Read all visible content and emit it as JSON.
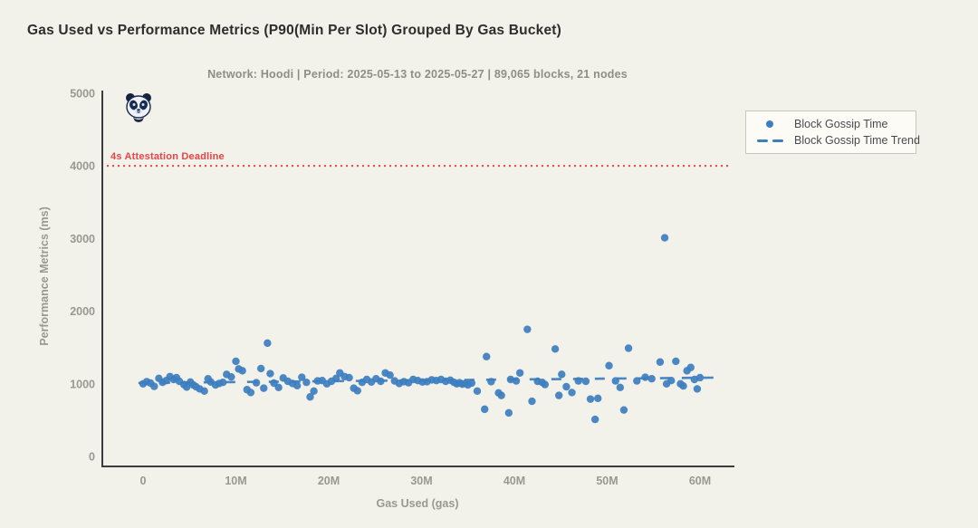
{
  "header": {
    "title": "Gas Used vs Performance Metrics (P90(Min Per Slot) Grouped By Gas Bucket)",
    "subtitle": "Network: Hoodi | Period: 2025-05-13 to 2025-05-27 | 89,065 blocks, 21 nodes"
  },
  "legend": {
    "items": [
      {
        "label": "Block Gossip Time",
        "marker": "dot"
      },
      {
        "label": "Block Gossip Time Trend",
        "marker": "dash"
      }
    ]
  },
  "colors": {
    "background": "#f2f1ea",
    "point_blue": "#3c7ebf",
    "trend_blue": "#4a86c2",
    "deadline_red": "#e84545",
    "axis": "#3c3c3a",
    "tick_text": "#9a988f",
    "title_text": "#2d2d2b",
    "subtitle_text": "#8f8e86"
  },
  "icons": {
    "logo": "panda-logo"
  },
  "chart_data": {
    "type": "scatter",
    "title": "Gas Used vs Performance Metrics (P90(Min Per Slot) Grouped By Gas Bucket)",
    "xlabel": "Gas Used (gas)",
    "ylabel": "Performance Metrics (ms)",
    "x_unit_note": "x values are gas used in millions (M)",
    "grid": false,
    "legend_position": "top-right",
    "ylim": [
      0,
      5000
    ],
    "x_ticks": [
      {
        "value": 0,
        "label": "0"
      },
      {
        "value": 10,
        "label": "10M"
      },
      {
        "value": 20,
        "label": "20M"
      },
      {
        "value": 30,
        "label": "30M"
      },
      {
        "value": 40,
        "label": "40M"
      },
      {
        "value": 50,
        "label": "50M"
      },
      {
        "value": 60,
        "label": "60M"
      }
    ],
    "y_ticks": [
      {
        "value": 0,
        "label": "0"
      },
      {
        "value": 1000,
        "label": "1000"
      },
      {
        "value": 2000,
        "label": "2000"
      },
      {
        "value": 3000,
        "label": "3000"
      },
      {
        "value": 4000,
        "label": "4000"
      },
      {
        "value": 5000,
        "label": "5000"
      }
    ],
    "deadline": {
      "value": 4000,
      "label": "4s Attestation Deadline"
    },
    "series": [
      {
        "name": "Block Gossip Time",
        "kind": "scatter",
        "points": [
          [
            0.0,
            1000
          ],
          [
            0.4,
            1030
          ],
          [
            0.8,
            1010
          ],
          [
            1.2,
            965
          ],
          [
            1.7,
            1075
          ],
          [
            2.1,
            1020
          ],
          [
            2.5,
            1045
          ],
          [
            2.9,
            1100
          ],
          [
            3.3,
            1060
          ],
          [
            3.6,
            1085
          ],
          [
            3.9,
            1035
          ],
          [
            4.4,
            990
          ],
          [
            4.7,
            955
          ],
          [
            5.1,
            1025
          ],
          [
            5.4,
            985
          ],
          [
            5.7,
            960
          ],
          [
            6.1,
            930
          ],
          [
            6.6,
            900
          ],
          [
            7.0,
            1070
          ],
          [
            7.3,
            1025
          ],
          [
            7.8,
            985
          ],
          [
            8.2,
            1005
          ],
          [
            8.6,
            1020
          ],
          [
            9.0,
            1130
          ],
          [
            9.5,
            1095
          ],
          [
            10.0,
            1310
          ],
          [
            10.3,
            1205
          ],
          [
            10.7,
            1180
          ],
          [
            11.2,
            920
          ],
          [
            11.6,
            880
          ],
          [
            12.2,
            1015
          ],
          [
            12.7,
            1210
          ],
          [
            13.0,
            940
          ],
          [
            13.4,
            1560
          ],
          [
            13.7,
            1140
          ],
          [
            14.1,
            1010
          ],
          [
            14.6,
            950
          ],
          [
            15.1,
            1080
          ],
          [
            15.6,
            1035
          ],
          [
            16.1,
            1005
          ],
          [
            16.6,
            975
          ],
          [
            17.1,
            1090
          ],
          [
            17.6,
            1020
          ],
          [
            18.0,
            820
          ],
          [
            18.4,
            900
          ],
          [
            18.8,
            1040
          ],
          [
            19.3,
            1045
          ],
          [
            19.8,
            1000
          ],
          [
            20.3,
            1035
          ],
          [
            20.8,
            1075
          ],
          [
            21.2,
            1150
          ],
          [
            21.7,
            1100
          ],
          [
            22.2,
            1085
          ],
          [
            22.7,
            940
          ],
          [
            23.1,
            905
          ],
          [
            23.6,
            1020
          ],
          [
            24.1,
            1060
          ],
          [
            24.6,
            1025
          ],
          [
            25.1,
            1070
          ],
          [
            25.6,
            1035
          ],
          [
            26.1,
            1150
          ],
          [
            26.6,
            1120
          ],
          [
            27.1,
            1040
          ],
          [
            27.6,
            1005
          ],
          [
            28.1,
            1030
          ],
          [
            28.6,
            1015
          ],
          [
            29.1,
            1060
          ],
          [
            29.6,
            1045
          ],
          [
            30.1,
            1025
          ],
          [
            30.6,
            1030
          ],
          [
            31.1,
            1055
          ],
          [
            31.6,
            1045
          ],
          [
            32.1,
            1060
          ],
          [
            32.6,
            1035
          ],
          [
            33.1,
            1050
          ],
          [
            33.5,
            1020
          ],
          [
            33.8,
            1000
          ],
          [
            34.1,
            1015
          ],
          [
            34.4,
            995
          ],
          [
            34.7,
            1005
          ],
          [
            35.0,
            985
          ],
          [
            35.4,
            1010
          ],
          [
            36.0,
            900
          ],
          [
            36.8,
            650
          ],
          [
            37.0,
            1375
          ],
          [
            37.5,
            1030
          ],
          [
            38.3,
            875
          ],
          [
            38.6,
            840
          ],
          [
            39.4,
            600
          ],
          [
            39.6,
            1060
          ],
          [
            40.2,
            1040
          ],
          [
            40.6,
            1150
          ],
          [
            41.4,
            1750
          ],
          [
            41.9,
            760
          ],
          [
            42.5,
            1035
          ],
          [
            43.0,
            1020
          ],
          [
            43.3,
            990
          ],
          [
            44.4,
            1480
          ],
          [
            44.8,
            840
          ],
          [
            45.1,
            1130
          ],
          [
            45.6,
            960
          ],
          [
            46.2,
            880
          ],
          [
            46.9,
            1040
          ],
          [
            47.7,
            1035
          ],
          [
            48.2,
            790
          ],
          [
            48.7,
            510
          ],
          [
            49.0,
            800
          ],
          [
            50.2,
            1250
          ],
          [
            50.9,
            1040
          ],
          [
            51.4,
            950
          ],
          [
            51.8,
            640
          ],
          [
            52.3,
            1490
          ],
          [
            53.2,
            1040
          ],
          [
            54.1,
            1090
          ],
          [
            54.8,
            1070
          ],
          [
            55.7,
            1300
          ],
          [
            56.2,
            3010
          ],
          [
            56.4,
            1000
          ],
          [
            56.9,
            1045
          ],
          [
            57.4,
            1310
          ],
          [
            57.9,
            1000
          ],
          [
            58.2,
            970
          ],
          [
            58.6,
            1180
          ],
          [
            59.0,
            1225
          ],
          [
            59.4,
            1060
          ],
          [
            59.7,
            930
          ],
          [
            60.0,
            1085
          ]
        ]
      },
      {
        "name": "Block Gossip Time Trend",
        "kind": "dashed-line",
        "points": [
          [
            -0.5,
            1012
          ],
          [
            61.5,
            1085
          ]
        ]
      }
    ]
  }
}
